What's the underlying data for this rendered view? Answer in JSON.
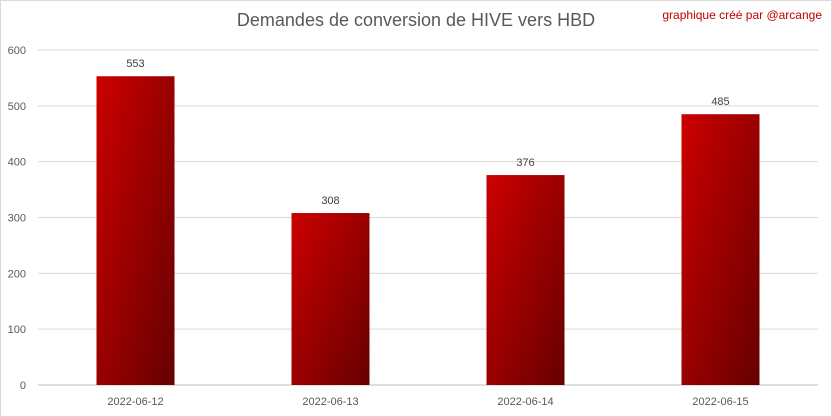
{
  "chart_data": {
    "type": "bar",
    "title": "Demandes de conversion de HIVE vers HBD",
    "credit": "graphique créé par @arcange",
    "categories": [
      "2022-06-12",
      "2022-06-13",
      "2022-06-14",
      "2022-06-15"
    ],
    "values": [
      553,
      308,
      376,
      485
    ],
    "ylim": [
      0,
      600
    ],
    "yticks": [
      0,
      100,
      200,
      300,
      400,
      500,
      600
    ],
    "grid": true,
    "bar_color_top": "#cc0000",
    "bar_color_bottom": "#660000"
  }
}
